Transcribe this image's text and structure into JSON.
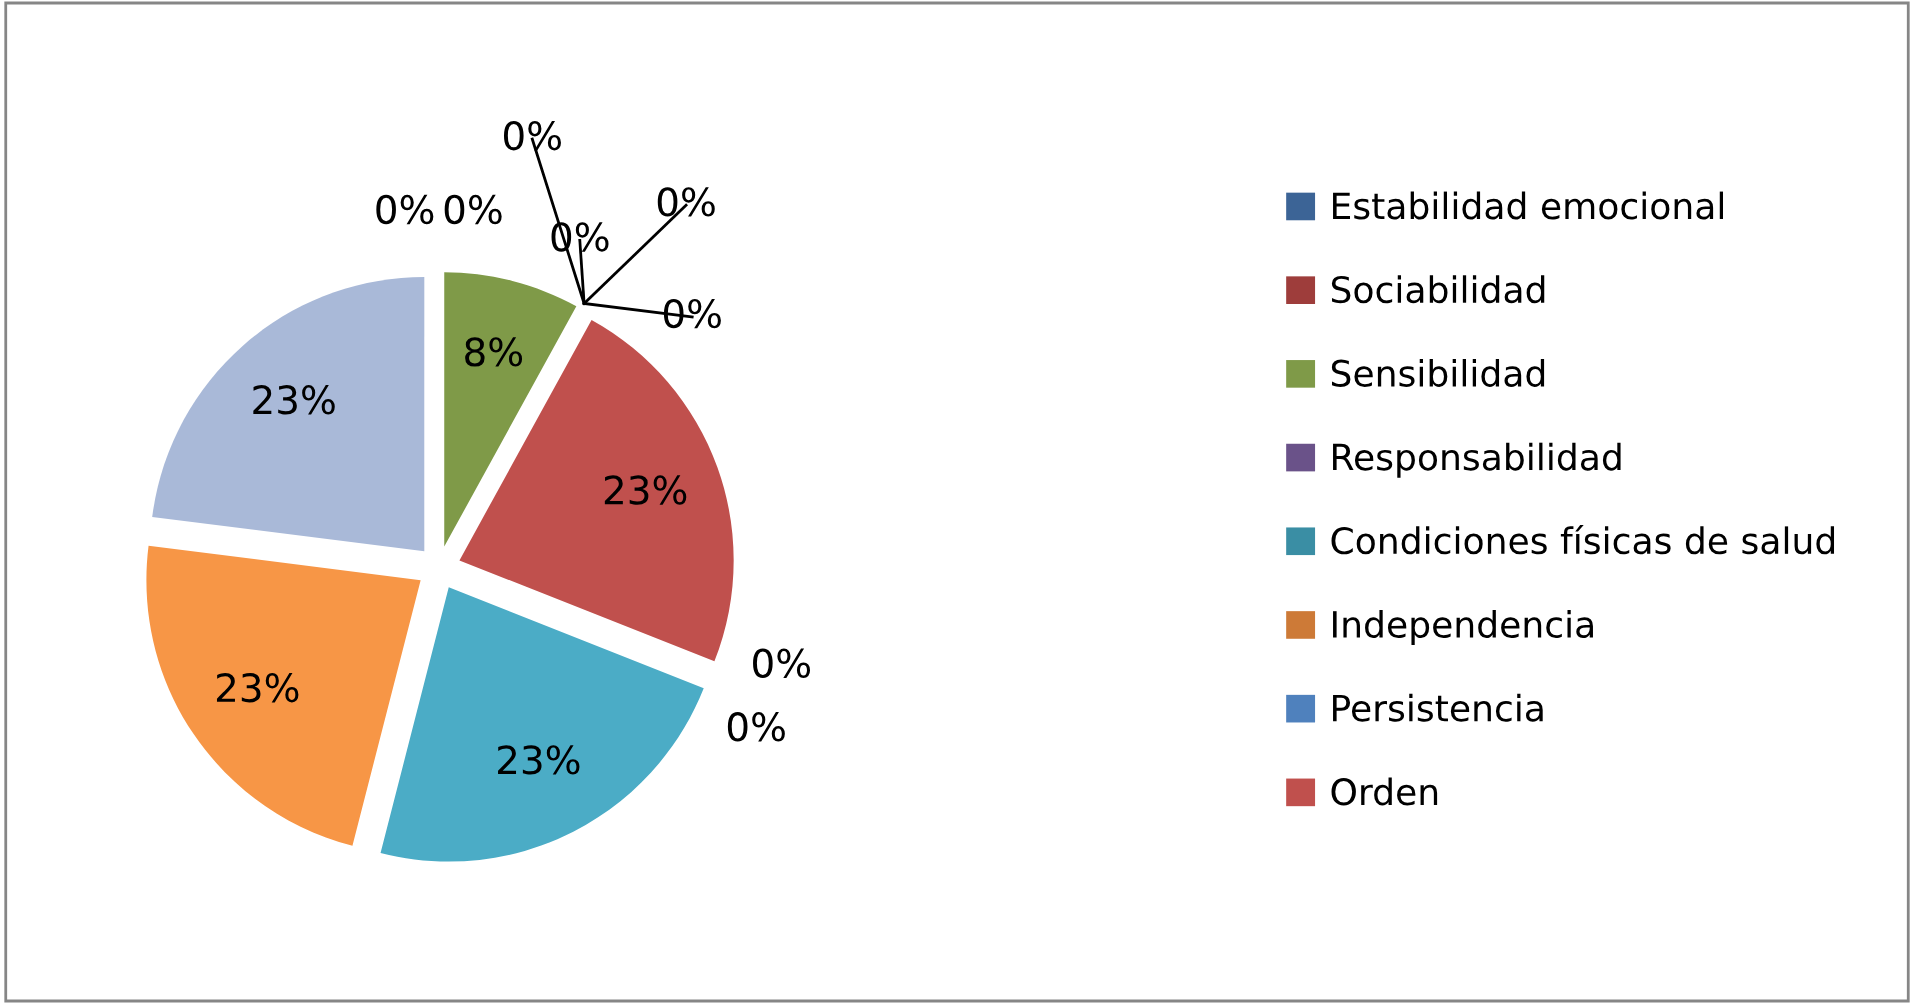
{
  "chart_data": {
    "type": "pie",
    "categories": [
      "Estabilidad emocional",
      "Sociabilidad",
      "Sensibilidad",
      "Responsabilidad",
      "Condiciones físicas de salud",
      "Independencia",
      "Persistencia",
      "Orden",
      null,
      null,
      null,
      null,
      null
    ],
    "values": [
      0,
      0,
      8,
      0,
      0,
      0,
      0,
      23,
      0,
      0,
      23,
      23,
      23
    ],
    "colors": [
      "#3c6496",
      "#9e3d3b",
      "#7f9a48",
      "#6a5289",
      "#3a8ea4",
      "#cd7a37",
      "#4f81bd",
      "#c0504d",
      "#9bbb59",
      "#8064a2",
      "#4bacc6",
      "#f79646",
      "#a9b9d8"
    ],
    "value_labels": [
      "0%",
      "0%",
      "8%",
      "0%",
      "0%",
      "0%",
      "0%",
      "23%",
      "0%",
      "0%",
      "23%",
      "23%",
      "23%"
    ],
    "legend": "right"
  }
}
